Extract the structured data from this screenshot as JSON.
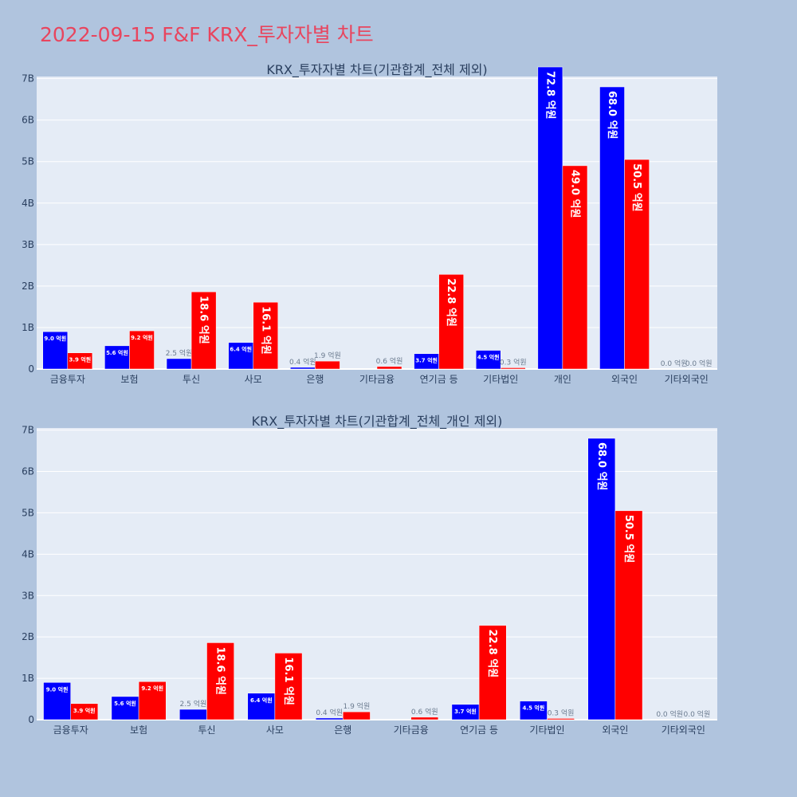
{
  "page_title": "2022-09-15 F&F KRX_투자자별 차트",
  "colors": {
    "series_a": "#0000ff",
    "series_b": "#ff0000",
    "plot_bg": "#e5ecf6",
    "page_bg": "#b0c4de",
    "title": "#e8455e"
  },
  "chart_data": [
    {
      "type": "bar",
      "title": "KRX_투자자별 차트(기관합계_전체 제외)",
      "categories": [
        "금융투자",
        "보험",
        "투신",
        "사모",
        "은행",
        "기타금융",
        "연기금 등",
        "기타법인",
        "개인",
        "외국인",
        "기타외국인"
      ],
      "series": [
        {
          "values": [
            0.9,
            0.56,
            0.25,
            0.64,
            0.04,
            0.0,
            0.37,
            0.45,
            7.28,
            6.8,
            0.0
          ],
          "labels": [
            "9.0 억원",
            "5.6 억원",
            "2.5 억원",
            "6.4 억원",
            "0.4 억원",
            "",
            "3.7 억원",
            "4.5 억원",
            "72.8 억원",
            "68.0 억원",
            "0.0 억원"
          ]
        },
        {
          "values": [
            0.39,
            0.92,
            1.86,
            1.61,
            0.19,
            0.06,
            2.28,
            0.03,
            4.9,
            5.05,
            0.0
          ],
          "labels": [
            "3.9 억원",
            "9.2 억원",
            "18.6 억원",
            "16.1 억원",
            "1.9 억원",
            "0.6 억원",
            "22.8 억원",
            "0.3 억원",
            "49.0 억원",
            "50.5 억원",
            "0.0 억원"
          ]
        }
      ],
      "y_ticks": [
        0,
        1,
        2,
        3,
        4,
        5,
        6,
        7
      ],
      "y_tick_labels": [
        "0",
        "1B",
        "2B",
        "3B",
        "4B",
        "5B",
        "6B",
        "7B"
      ],
      "ylim": [
        0,
        7.05
      ],
      "grid": true
    },
    {
      "type": "bar",
      "title": "KRX_투자자별 차트(기관합계_전체_개인 제외)",
      "categories": [
        "금융투자",
        "보험",
        "투신",
        "사모",
        "은행",
        "기타금융",
        "연기금 등",
        "기타법인",
        "외국인",
        "기타외국인"
      ],
      "series": [
        {
          "values": [
            0.9,
            0.56,
            0.25,
            0.64,
            0.04,
            0.0,
            0.37,
            0.45,
            6.8,
            0.0
          ],
          "labels": [
            "9.0 억원",
            "5.6 억원",
            "2.5 억원",
            "6.4 억원",
            "0.4 억원",
            "",
            "3.7 억원",
            "4.5 억원",
            "68.0 억원",
            "0.0 억원"
          ]
        },
        {
          "values": [
            0.39,
            0.92,
            1.86,
            1.61,
            0.19,
            0.06,
            2.28,
            0.03,
            5.05,
            0.0
          ],
          "labels": [
            "3.9 억원",
            "9.2 억원",
            "18.6 억원",
            "16.1 억원",
            "1.9 억원",
            "0.6 억원",
            "22.8 억원",
            "0.3 억원",
            "50.5 억원",
            "0.0 억원"
          ]
        }
      ],
      "y_ticks": [
        0,
        1,
        2,
        3,
        4,
        5,
        6,
        7
      ],
      "y_tick_labels": [
        "0",
        "1B",
        "2B",
        "3B",
        "4B",
        "5B",
        "6B",
        "7B"
      ],
      "ylim": [
        0,
        7.05
      ],
      "grid": true
    }
  ]
}
